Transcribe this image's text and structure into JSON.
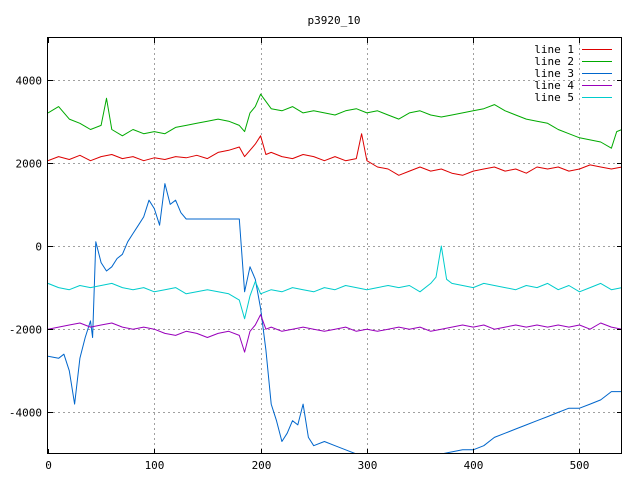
{
  "chart_data": {
    "type": "line",
    "title": "p3920_10",
    "xlabel": "",
    "ylabel": "",
    "xlim": [
      0,
      540
    ],
    "ylim": [
      -5000,
      5000
    ],
    "x_ticks": [
      0,
      100,
      200,
      300,
      400,
      500
    ],
    "y_ticks": [
      -4000,
      -2000,
      0,
      2000,
      4000
    ],
    "grid": true,
    "legend_position": "top-right",
    "series": [
      {
        "name": "line 1",
        "color": "#dd0000",
        "points": [
          [
            0,
            2050
          ],
          [
            10,
            2150
          ],
          [
            20,
            2080
          ],
          [
            30,
            2180
          ],
          [
            40,
            2050
          ],
          [
            50,
            2150
          ],
          [
            60,
            2200
          ],
          [
            70,
            2100
          ],
          [
            80,
            2150
          ],
          [
            90,
            2050
          ],
          [
            100,
            2120
          ],
          [
            110,
            2080
          ],
          [
            120,
            2150
          ],
          [
            130,
            2120
          ],
          [
            140,
            2180
          ],
          [
            150,
            2100
          ],
          [
            160,
            2250
          ],
          [
            170,
            2300
          ],
          [
            180,
            2380
          ],
          [
            185,
            2150
          ],
          [
            190,
            2300
          ],
          [
            195,
            2450
          ],
          [
            200,
            2650
          ],
          [
            205,
            2200
          ],
          [
            210,
            2250
          ],
          [
            220,
            2150
          ],
          [
            230,
            2100
          ],
          [
            240,
            2200
          ],
          [
            250,
            2150
          ],
          [
            260,
            2050
          ],
          [
            270,
            2150
          ],
          [
            280,
            2050
          ],
          [
            290,
            2100
          ],
          [
            295,
            2700
          ],
          [
            300,
            2050
          ],
          [
            310,
            1900
          ],
          [
            320,
            1850
          ],
          [
            330,
            1700
          ],
          [
            340,
            1800
          ],
          [
            350,
            1900
          ],
          [
            360,
            1800
          ],
          [
            370,
            1850
          ],
          [
            380,
            1750
          ],
          [
            390,
            1700
          ],
          [
            400,
            1800
          ],
          [
            410,
            1850
          ],
          [
            420,
            1900
          ],
          [
            430,
            1800
          ],
          [
            440,
            1850
          ],
          [
            450,
            1750
          ],
          [
            460,
            1900
          ],
          [
            470,
            1850
          ],
          [
            480,
            1900
          ],
          [
            490,
            1800
          ],
          [
            500,
            1850
          ],
          [
            510,
            1950
          ],
          [
            520,
            1900
          ],
          [
            530,
            1850
          ],
          [
            540,
            1900
          ]
        ]
      },
      {
        "name": "line 2",
        "color": "#00aa00",
        "points": [
          [
            0,
            3200
          ],
          [
            10,
            3350
          ],
          [
            20,
            3050
          ],
          [
            30,
            2950
          ],
          [
            40,
            2800
          ],
          [
            50,
            2900
          ],
          [
            55,
            3550
          ],
          [
            60,
            2800
          ],
          [
            70,
            2650
          ],
          [
            80,
            2800
          ],
          [
            90,
            2700
          ],
          [
            100,
            2750
          ],
          [
            110,
            2700
          ],
          [
            120,
            2850
          ],
          [
            130,
            2900
          ],
          [
            140,
            2950
          ],
          [
            150,
            3000
          ],
          [
            160,
            3050
          ],
          [
            170,
            3000
          ],
          [
            180,
            2900
          ],
          [
            185,
            2750
          ],
          [
            190,
            3200
          ],
          [
            195,
            3350
          ],
          [
            200,
            3650
          ],
          [
            210,
            3300
          ],
          [
            220,
            3250
          ],
          [
            230,
            3350
          ],
          [
            240,
            3200
          ],
          [
            250,
            3250
          ],
          [
            260,
            3200
          ],
          [
            270,
            3150
          ],
          [
            280,
            3250
          ],
          [
            290,
            3300
          ],
          [
            300,
            3200
          ],
          [
            310,
            3250
          ],
          [
            320,
            3150
          ],
          [
            330,
            3050
          ],
          [
            340,
            3200
          ],
          [
            350,
            3250
          ],
          [
            360,
            3150
          ],
          [
            370,
            3100
          ],
          [
            380,
            3150
          ],
          [
            390,
            3200
          ],
          [
            400,
            3250
          ],
          [
            410,
            3300
          ],
          [
            420,
            3400
          ],
          [
            430,
            3250
          ],
          [
            440,
            3150
          ],
          [
            450,
            3050
          ],
          [
            460,
            3000
          ],
          [
            470,
            2950
          ],
          [
            480,
            2800
          ],
          [
            490,
            2700
          ],
          [
            500,
            2600
          ],
          [
            510,
            2550
          ],
          [
            520,
            2500
          ],
          [
            530,
            2350
          ],
          [
            535,
            2750
          ],
          [
            540,
            2800
          ]
        ]
      },
      {
        "name": "line 3",
        "color": "#0066cc",
        "points": [
          [
            0,
            -2650
          ],
          [
            10,
            -2700
          ],
          [
            15,
            -2600
          ],
          [
            20,
            -3000
          ],
          [
            25,
            -3800
          ],
          [
            30,
            -2700
          ],
          [
            35,
            -2200
          ],
          [
            40,
            -1800
          ],
          [
            42,
            -2200
          ],
          [
            45,
            100
          ],
          [
            50,
            -400
          ],
          [
            55,
            -600
          ],
          [
            60,
            -500
          ],
          [
            65,
            -300
          ],
          [
            70,
            -200
          ],
          [
            75,
            100
          ],
          [
            80,
            300
          ],
          [
            85,
            500
          ],
          [
            90,
            700
          ],
          [
            95,
            1100
          ],
          [
            100,
            900
          ],
          [
            105,
            500
          ],
          [
            110,
            1500
          ],
          [
            115,
            1000
          ],
          [
            120,
            1100
          ],
          [
            125,
            800
          ],
          [
            130,
            650
          ],
          [
            180,
            650
          ],
          [
            185,
            -1100
          ],
          [
            190,
            -500
          ],
          [
            195,
            -800
          ],
          [
            200,
            -1500
          ],
          [
            205,
            -2500
          ],
          [
            210,
            -3800
          ],
          [
            215,
            -4200
          ],
          [
            220,
            -4700
          ],
          [
            225,
            -4500
          ],
          [
            230,
            -4200
          ],
          [
            235,
            -4300
          ],
          [
            240,
            -3800
          ],
          [
            245,
            -4600
          ],
          [
            250,
            -4800
          ],
          [
            260,
            -4700
          ],
          [
            270,
            -4800
          ],
          [
            280,
            -4900
          ],
          [
            290,
            -5000
          ],
          [
            300,
            -5100
          ],
          [
            320,
            -5200
          ],
          [
            340,
            -5150
          ],
          [
            360,
            -5100
          ],
          [
            370,
            -5000
          ],
          [
            380,
            -4950
          ],
          [
            390,
            -4900
          ],
          [
            400,
            -4900
          ],
          [
            410,
            -4800
          ],
          [
            420,
            -4600
          ],
          [
            430,
            -4500
          ],
          [
            440,
            -4400
          ],
          [
            450,
            -4300
          ],
          [
            460,
            -4200
          ],
          [
            470,
            -4100
          ],
          [
            480,
            -4000
          ],
          [
            490,
            -3900
          ],
          [
            500,
            -3900
          ],
          [
            510,
            -3800
          ],
          [
            520,
            -3700
          ],
          [
            530,
            -3500
          ],
          [
            540,
            -3500
          ]
        ]
      },
      {
        "name": "line 4",
        "color": "#9900bb",
        "points": [
          [
            0,
            -2000
          ],
          [
            10,
            -1950
          ],
          [
            20,
            -1900
          ],
          [
            30,
            -1850
          ],
          [
            40,
            -1950
          ],
          [
            50,
            -1900
          ],
          [
            60,
            -1850
          ],
          [
            70,
            -1950
          ],
          [
            80,
            -2000
          ],
          [
            90,
            -1950
          ],
          [
            100,
            -2000
          ],
          [
            110,
            -2100
          ],
          [
            120,
            -2150
          ],
          [
            130,
            -2050
          ],
          [
            140,
            -2100
          ],
          [
            150,
            -2200
          ],
          [
            160,
            -2100
          ],
          [
            170,
            -2050
          ],
          [
            180,
            -2150
          ],
          [
            185,
            -2550
          ],
          [
            190,
            -2050
          ],
          [
            195,
            -1900
          ],
          [
            200,
            -1650
          ],
          [
            205,
            -2000
          ],
          [
            210,
            -1950
          ],
          [
            220,
            -2050
          ],
          [
            230,
            -2000
          ],
          [
            240,
            -1950
          ],
          [
            250,
            -2000
          ],
          [
            260,
            -2050
          ],
          [
            270,
            -2000
          ],
          [
            280,
            -1950
          ],
          [
            290,
            -2050
          ],
          [
            300,
            -2000
          ],
          [
            310,
            -2050
          ],
          [
            320,
            -2000
          ],
          [
            330,
            -1950
          ],
          [
            340,
            -2000
          ],
          [
            350,
            -1950
          ],
          [
            360,
            -2050
          ],
          [
            370,
            -2000
          ],
          [
            380,
            -1950
          ],
          [
            390,
            -1900
          ],
          [
            400,
            -1950
          ],
          [
            410,
            -1900
          ],
          [
            420,
            -2000
          ],
          [
            430,
            -1950
          ],
          [
            440,
            -1900
          ],
          [
            450,
            -1950
          ],
          [
            460,
            -1900
          ],
          [
            470,
            -1950
          ],
          [
            480,
            -1900
          ],
          [
            490,
            -1950
          ],
          [
            500,
            -1900
          ],
          [
            510,
            -2000
          ],
          [
            520,
            -1850
          ],
          [
            530,
            -1950
          ],
          [
            540,
            -2000
          ]
        ]
      },
      {
        "name": "line 5",
        "color": "#00cccc",
        "points": [
          [
            0,
            -900
          ],
          [
            10,
            -1000
          ],
          [
            20,
            -1050
          ],
          [
            30,
            -950
          ],
          [
            40,
            -1000
          ],
          [
            50,
            -950
          ],
          [
            60,
            -900
          ],
          [
            70,
            -1000
          ],
          [
            80,
            -1050
          ],
          [
            90,
            -1000
          ],
          [
            100,
            -1100
          ],
          [
            110,
            -1050
          ],
          [
            120,
            -1000
          ],
          [
            130,
            -1150
          ],
          [
            140,
            -1100
          ],
          [
            150,
            -1050
          ],
          [
            160,
            -1100
          ],
          [
            170,
            -1150
          ],
          [
            180,
            -1300
          ],
          [
            185,
            -1750
          ],
          [
            190,
            -1200
          ],
          [
            195,
            -850
          ],
          [
            200,
            -1150
          ],
          [
            210,
            -1050
          ],
          [
            220,
            -1100
          ],
          [
            230,
            -1000
          ],
          [
            240,
            -1050
          ],
          [
            250,
            -1100
          ],
          [
            260,
            -1000
          ],
          [
            270,
            -1050
          ],
          [
            280,
            -950
          ],
          [
            290,
            -1000
          ],
          [
            300,
            -1050
          ],
          [
            310,
            -1000
          ],
          [
            320,
            -950
          ],
          [
            330,
            -1000
          ],
          [
            340,
            -950
          ],
          [
            350,
            -1100
          ],
          [
            360,
            -900
          ],
          [
            365,
            -750
          ],
          [
            370,
            0
          ],
          [
            375,
            -800
          ],
          [
            380,
            -900
          ],
          [
            390,
            -950
          ],
          [
            400,
            -1000
          ],
          [
            410,
            -900
          ],
          [
            420,
            -950
          ],
          [
            430,
            -1000
          ],
          [
            440,
            -1050
          ],
          [
            450,
            -950
          ],
          [
            460,
            -1000
          ],
          [
            470,
            -900
          ],
          [
            480,
            -1050
          ],
          [
            490,
            -950
          ],
          [
            500,
            -1100
          ],
          [
            510,
            -1000
          ],
          [
            520,
            -900
          ],
          [
            530,
            -1050
          ],
          [
            540,
            -1000
          ]
        ]
      }
    ]
  }
}
